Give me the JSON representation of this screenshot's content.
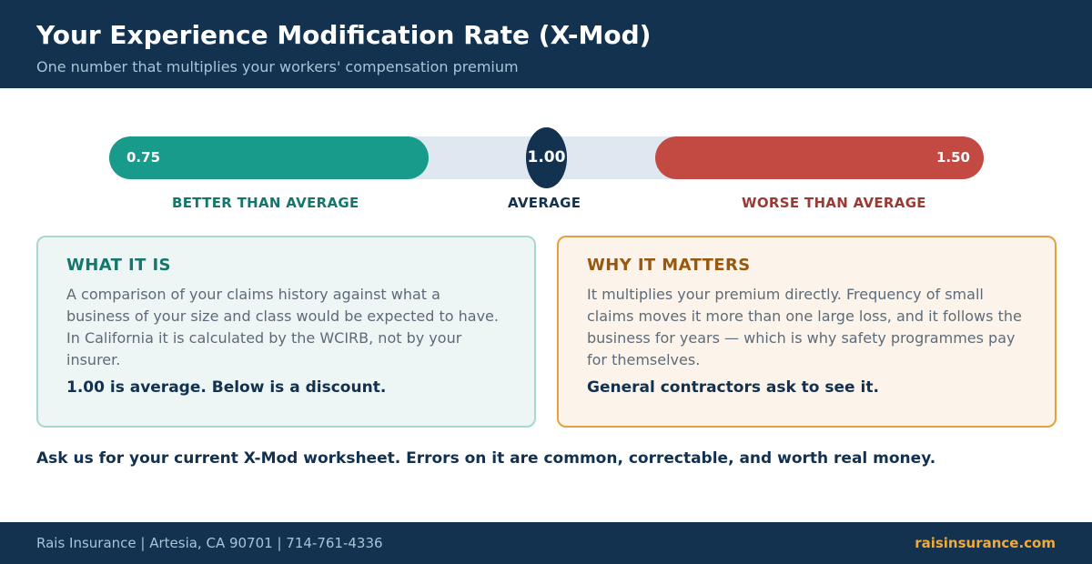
{
  "header": {
    "title": "Your Experience Modification Rate (X-Mod)",
    "subtitle": "One number that multiplies your workers' compensation premium"
  },
  "scale": {
    "low_value": "0.75",
    "mid_value": "1.00",
    "high_value": "1.50",
    "low_label": "BETTER THAN AVERAGE",
    "mid_label": "AVERAGE",
    "high_label": "WORSE THAN AVERAGE",
    "colors": {
      "better": "#189b8b",
      "average": "#12324f",
      "worse": "#c24a42",
      "track": "#dfe7f0"
    }
  },
  "cards": {
    "what": {
      "heading": "WHAT IT IS",
      "body": "A comparison of your claims history against what a business of your size and class would be expected to have. In California it is calculated by the WCIRB, not by your insurer.",
      "emphasis": "1.00 is average. Below is a discount."
    },
    "why": {
      "heading": "WHY IT MATTERS",
      "body": "It multiplies your premium directly. Frequency of small claims moves it more than one large loss, and it follows the business for years — which is why safety programmes pay for themselves.",
      "emphasis": "General contractors ask to see it."
    }
  },
  "cta": "Ask us for your current X-Mod worksheet. Errors on it are common, correctable, and worth real money.",
  "footer": {
    "contact": "Rais Insurance  |  Artesia, CA 90701  |  714-761-4336",
    "website": "raisinsurance.com"
  }
}
